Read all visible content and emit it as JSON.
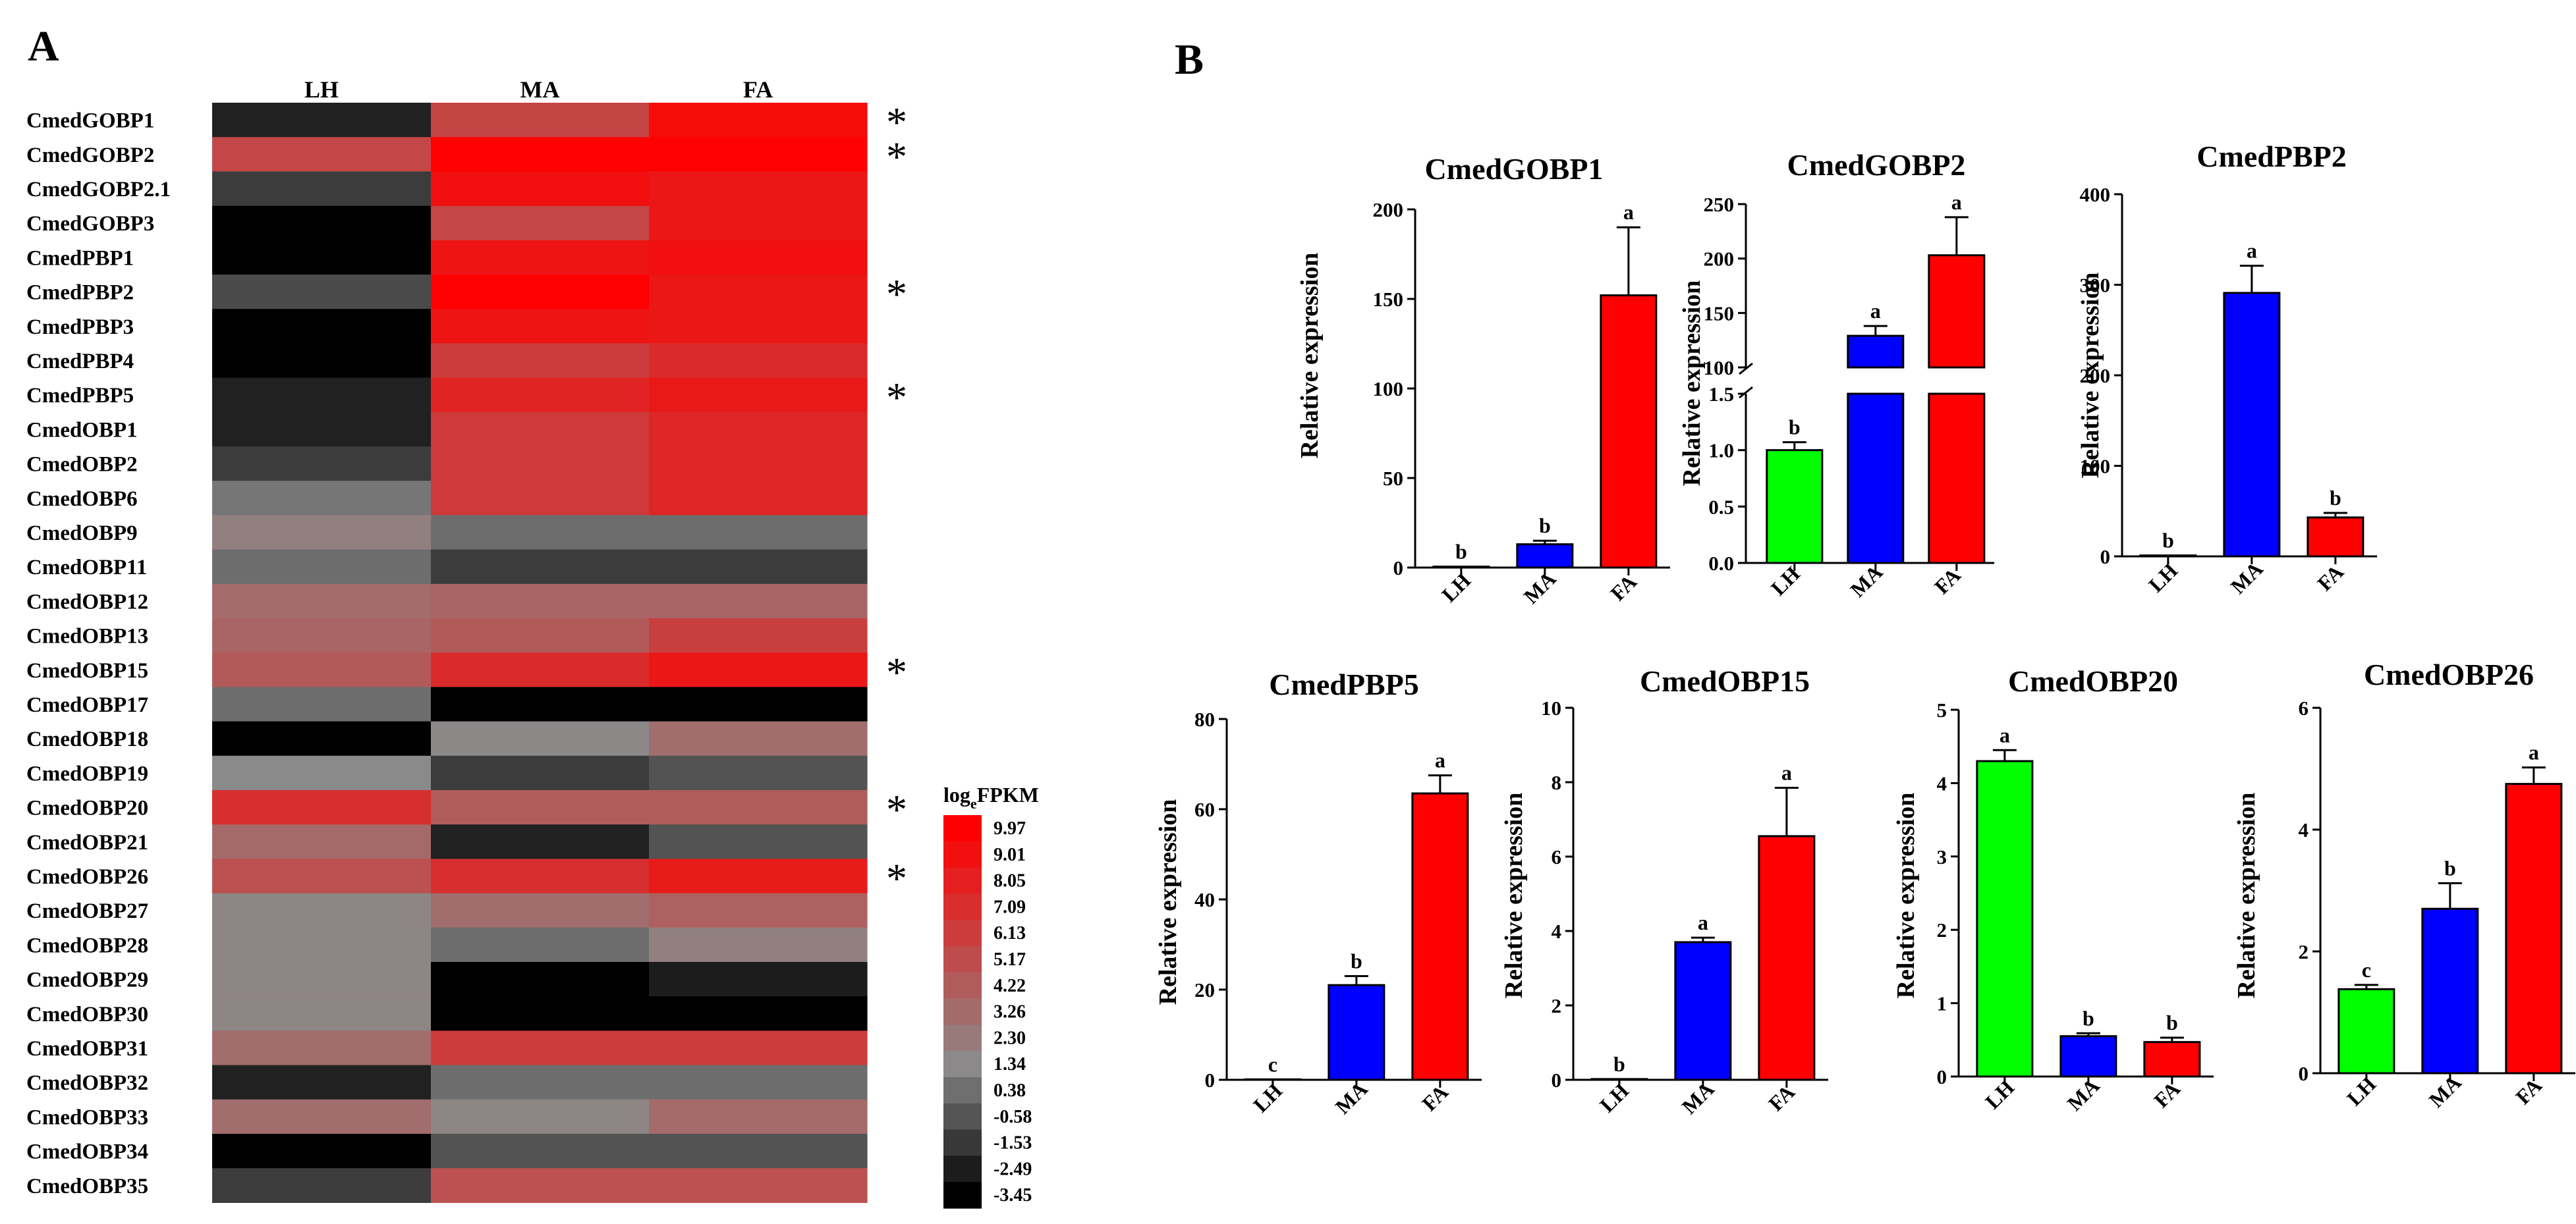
{
  "panels": {
    "A": "A",
    "B": "B"
  },
  "chart_data": [
    {
      "type": "heatmap",
      "title": "",
      "columns": [
        "LH",
        "MA",
        "FA"
      ],
      "rows": [
        {
          "name": "CmedGOBP1",
          "values": [
            -2.3,
            5.7,
            9.3
          ],
          "star": true
        },
        {
          "name": "CmedGOBP2",
          "values": [
            5.6,
            9.9,
            9.9
          ],
          "star": true
        },
        {
          "name": "CmedGOBP2.1",
          "values": [
            -1.4,
            9.0,
            8.5
          ],
          "star": false
        },
        {
          "name": "CmedGOBP3",
          "values": [
            -3.45,
            5.6,
            8.5
          ],
          "star": false
        },
        {
          "name": "CmedPBP1",
          "values": [
            -3.45,
            8.7,
            9.0
          ],
          "star": false
        },
        {
          "name": "CmedPBP2",
          "values": [
            -0.9,
            9.9,
            8.5
          ],
          "star": true
        },
        {
          "name": "CmedPBP3",
          "values": [
            -3.45,
            8.7,
            8.5
          ],
          "star": false
        },
        {
          "name": "CmedPBP4",
          "values": [
            -3.45,
            6.2,
            7.3
          ],
          "star": false
        },
        {
          "name": "CmedPBP5",
          "values": [
            -2.3,
            7.8,
            8.4
          ],
          "star": true
        },
        {
          "name": "CmedOBP1",
          "values": [
            -2.3,
            6.4,
            7.6
          ],
          "star": false
        },
        {
          "name": "CmedOBP2",
          "values": [
            -1.4,
            6.4,
            7.6
          ],
          "star": false
        },
        {
          "name": "CmedOBP6",
          "values": [
            0.6,
            6.4,
            7.6
          ],
          "star": false
        },
        {
          "name": "CmedOBP9",
          "values": [
            1.9,
            0.3,
            0.3
          ],
          "star": false
        },
        {
          "name": "CmedOBP11",
          "values": [
            0.3,
            -1.4,
            -1.4
          ],
          "star": false
        },
        {
          "name": "CmedOBP12",
          "values": [
            3.2,
            3.6,
            3.6
          ],
          "star": false
        },
        {
          "name": "CmedOBP13",
          "values": [
            3.6,
            4.3,
            6.0
          ],
          "star": false
        },
        {
          "name": "CmedOBP15",
          "values": [
            4.3,
            7.3,
            8.5
          ],
          "star": true
        },
        {
          "name": "CmedOBP17",
          "values": [
            0.3,
            -3.45,
            -3.45
          ],
          "star": false
        },
        {
          "name": "CmedOBP18",
          "values": [
            -3.45,
            1.4,
            3.1
          ],
          "star": false
        },
        {
          "name": "CmedOBP19",
          "values": [
            1.3,
            -1.4,
            -0.6
          ],
          "star": false
        },
        {
          "name": "CmedOBP20",
          "values": [
            7.0,
            4.2,
            4.2
          ],
          "star": true
        },
        {
          "name": "CmedOBP21",
          "values": [
            3.4,
            -2.3,
            -0.6
          ],
          "star": false
        },
        {
          "name": "CmedOBP26",
          "values": [
            4.9,
            7.0,
            8.3
          ],
          "star": true
        },
        {
          "name": "CmedOBP27",
          "values": [
            1.6,
            3.1,
            3.9
          ],
          "star": false
        },
        {
          "name": "CmedOBP28",
          "values": [
            1.6,
            0.3,
            1.9
          ],
          "star": false
        },
        {
          "name": "CmedOBP29",
          "values": [
            1.6,
            -3.45,
            -2.5
          ],
          "star": false
        },
        {
          "name": "CmedOBP30",
          "values": [
            1.6,
            -3.45,
            -3.45
          ],
          "star": false
        },
        {
          "name": "CmedOBP31",
          "values": [
            3.1,
            6.2,
            6.2
          ],
          "star": false
        },
        {
          "name": "CmedOBP32",
          "values": [
            -2.3,
            0.3,
            0.3
          ],
          "star": false
        },
        {
          "name": "CmedOBP33",
          "values": [
            3.1,
            1.6,
            3.3
          ],
          "star": false
        },
        {
          "name": "CmedOBP34",
          "values": [
            -3.45,
            -0.6,
            -0.6
          ],
          "star": false
        },
        {
          "name": "CmedOBP35",
          "values": [
            -1.4,
            4.9,
            4.9
          ],
          "star": false
        }
      ],
      "star_symbol": "*",
      "colorscale": {
        "title_prefix": "log",
        "title_subscript": "e",
        "title_suffix": "FPKM",
        "ticks": [
          "9.97",
          "9.01",
          "8.05",
          "7.09",
          "6.13",
          "5.17",
          "4.22",
          "3.26",
          "2.30",
          "1.34",
          "0.38",
          "-0.58",
          "-1.53",
          "-2.49",
          "-3.45"
        ],
        "min": -3.45,
        "max": 9.97,
        "low_color": "#000000",
        "mid_color": "#8a8a8a",
        "high_color": "#ff0000"
      }
    },
    {
      "type": "bar",
      "title": "CmedGOBP1",
      "ylabel": "Relative expression",
      "categories": [
        "LH",
        "MA",
        "FA"
      ],
      "values": [
        0.5,
        13,
        152
      ],
      "errors": [
        0,
        2,
        38
      ],
      "letters": [
        "b",
        "b",
        "a"
      ],
      "ylim": [
        0,
        200
      ],
      "yticks": [
        "0",
        "50",
        "100",
        "150",
        "200"
      ],
      "colors": [
        "#00ff00",
        "#0000ff",
        "#ff0000"
      ]
    },
    {
      "type": "bar",
      "title": "CmedGOBP2",
      "ylabel": "Relative expression",
      "categories": [
        "LH",
        "MA",
        "FA"
      ],
      "values": [
        1.0,
        129,
        203
      ],
      "errors": [
        0.07,
        9,
        35
      ],
      "letters": [
        "b",
        "a",
        "a"
      ],
      "broken_axis": {
        "lower_ylim": [
          0,
          1.5
        ],
        "lower_yticks": [
          "0.0",
          "0.5",
          "1.0",
          "1.5"
        ],
        "upper_ylim": [
          100,
          250
        ],
        "upper_yticks": [
          "100",
          "150",
          "200",
          "250"
        ]
      },
      "colors": [
        "#00ff00",
        "#0000ff",
        "#ff0000"
      ]
    },
    {
      "type": "bar",
      "title": "CmedPBP2",
      "ylabel": "Relative expression",
      "categories": [
        "LH",
        "MA",
        "FA"
      ],
      "values": [
        1,
        291,
        43
      ],
      "errors": [
        0,
        30,
        5
      ],
      "letters": [
        "b",
        "a",
        "b"
      ],
      "ylim": [
        0,
        400
      ],
      "yticks": [
        "0",
        "100",
        "200",
        "300",
        "400"
      ],
      "colors": [
        "#00ff00",
        "#0000ff",
        "#ff0000"
      ]
    },
    {
      "type": "bar",
      "title": "CmedPBP5",
      "ylabel": "Relative expression",
      "categories": [
        "LH",
        "MA",
        "FA"
      ],
      "values": [
        0.1,
        21,
        63.5
      ],
      "errors": [
        0,
        2,
        4
      ],
      "letters": [
        "c",
        "b",
        "a"
      ],
      "ylim": [
        0,
        80
      ],
      "yticks": [
        "0",
        "20",
        "40",
        "60",
        "80"
      ],
      "colors": [
        "#00ff00",
        "#0000ff",
        "#ff0000"
      ]
    },
    {
      "type": "bar",
      "title": "CmedOBP15",
      "ylabel": "Relative expression",
      "categories": [
        "LH",
        "MA",
        "FA"
      ],
      "values": [
        0.02,
        3.7,
        6.55
      ],
      "errors": [
        0,
        0.12,
        1.3
      ],
      "letters": [
        "b",
        "a",
        "a"
      ],
      "ylim": [
        0,
        10
      ],
      "yticks": [
        "0",
        "2",
        "4",
        "6",
        "8",
        "10"
      ],
      "colors": [
        "#00ff00",
        "#0000ff",
        "#ff0000"
      ]
    },
    {
      "type": "bar",
      "title": "CmedOBP20",
      "ylabel": "Relative expression",
      "categories": [
        "LH",
        "MA",
        "FA"
      ],
      "values": [
        4.3,
        0.55,
        0.47
      ],
      "errors": [
        0.15,
        0.04,
        0.06
      ],
      "letters": [
        "a",
        "b",
        "b"
      ],
      "ylim": [
        0,
        5
      ],
      "yticks": [
        "0",
        "1",
        "2",
        "3",
        "4",
        "5"
      ],
      "colors": [
        "#00ff00",
        "#0000ff",
        "#ff0000"
      ]
    },
    {
      "type": "bar",
      "title": "CmedOBP26",
      "ylabel": "Relative expression",
      "categories": [
        "LH",
        "MA",
        "FA"
      ],
      "values": [
        1.38,
        2.7,
        4.75
      ],
      "errors": [
        0.07,
        0.42,
        0.27
      ],
      "letters": [
        "c",
        "b",
        "a"
      ],
      "ylim": [
        0,
        6
      ],
      "yticks": [
        "0",
        "2",
        "4",
        "6"
      ],
      "colors": [
        "#00ff00",
        "#0000ff",
        "#ff0000"
      ]
    }
  ]
}
